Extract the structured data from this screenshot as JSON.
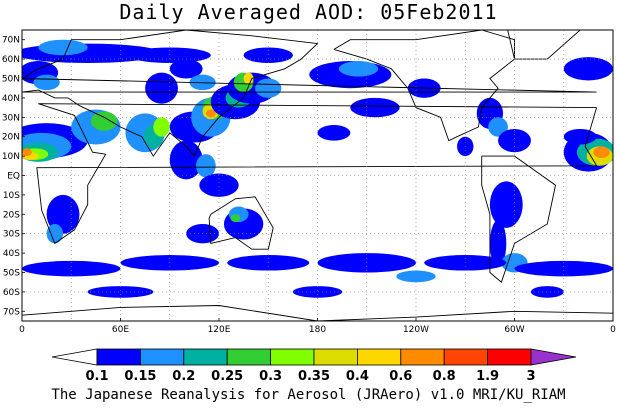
{
  "title": "Daily Averaged AOD: 05Feb2011",
  "credit": "The Japanese Reanalysis for Aerosol (JRAero) v1.0 MRI/KU_RIAM",
  "map": {
    "lat_labels": [
      "70N",
      "60N",
      "50N",
      "40N",
      "30N",
      "20N",
      "10N",
      "EQ",
      "10S",
      "20S",
      "30S",
      "40S",
      "50S",
      "60S",
      "70S"
    ],
    "lon_labels": [
      "0",
      "60E",
      "120E",
      "180",
      "120W",
      "60W",
      "0"
    ],
    "lat_range": [
      -75,
      75
    ],
    "lon_range": [
      0,
      360
    ],
    "projection": "cylindrical equidistant, 0° centered",
    "grid": "dotted every 30°"
  },
  "colorbar": {
    "levels": [
      "0.1",
      "0.15",
      "0.2",
      "0.25",
      "0.3",
      "0.35",
      "0.4",
      "0.6",
      "0.8",
      "1.9",
      "3"
    ],
    "colors": [
      "#ffffff",
      "#0000ff",
      "#1e90ff",
      "#00b0a0",
      "#32cd32",
      "#7fff00",
      "#dcdc00",
      "#ffd700",
      "#ff8c00",
      "#ff4500",
      "#ff0000",
      "#9932cc"
    ]
  }
}
